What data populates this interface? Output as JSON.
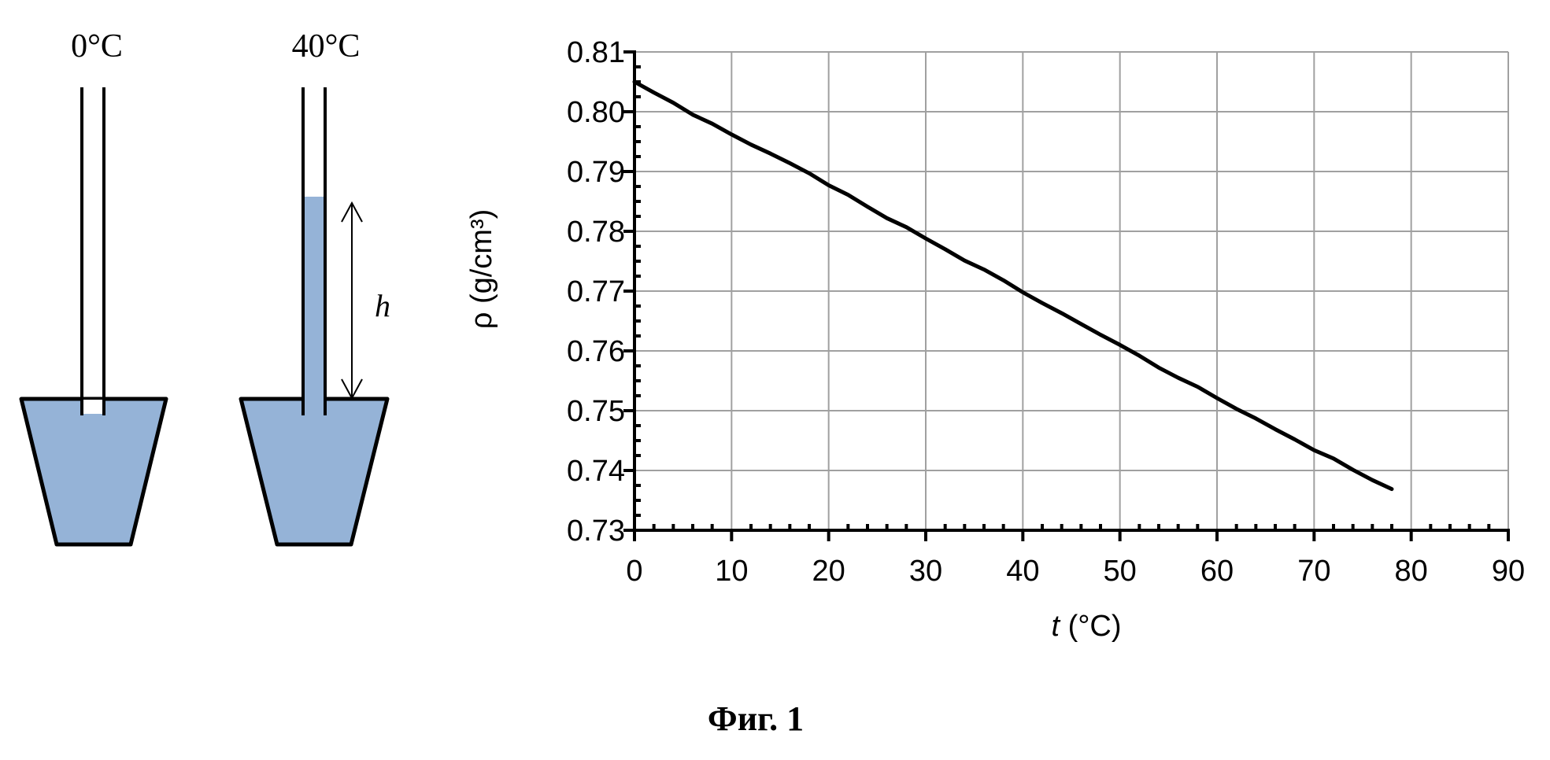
{
  "diagram": {
    "vessel_left_label": "0°C",
    "vessel_right_label": "40°C",
    "height_label": "h",
    "liquid_color": "#95b3d7"
  },
  "caption": "Фиг. 1",
  "chart_data": {
    "type": "line",
    "x": [
      0,
      2,
      4,
      6,
      8,
      10,
      12,
      14,
      16,
      18,
      20,
      22,
      24,
      26,
      28,
      30,
      32,
      34,
      36,
      38,
      40,
      42,
      44,
      46,
      48,
      50,
      52,
      54,
      56,
      58,
      60,
      62,
      64,
      66,
      68,
      70,
      72,
      74,
      76,
      78
    ],
    "values": [
      0.805,
      0.8032,
      0.8015,
      0.7995,
      0.798,
      0.7962,
      0.7945,
      0.793,
      0.7914,
      0.7897,
      0.7877,
      0.7861,
      0.7841,
      0.7822,
      0.7807,
      0.7788,
      0.777,
      0.7751,
      0.7736,
      0.7718,
      0.7698,
      0.768,
      0.7663,
      0.7645,
      0.7627,
      0.761,
      0.7592,
      0.7572,
      0.7555,
      0.754,
      0.7521,
      0.7503,
      0.7487,
      0.7469,
      0.7452,
      0.7434,
      0.742,
      0.7401,
      0.7384,
      0.7369
    ],
    "xlim": [
      0,
      90
    ],
    "ylim": [
      0.73,
      0.81
    ],
    "xticks": [
      "0",
      "10",
      "20",
      "30",
      "40",
      "50",
      "60",
      "70",
      "80",
      "90"
    ],
    "yticks": [
      "0.73",
      "0.74",
      "0.75",
      "0.76",
      "0.77",
      "0.78",
      "0.79",
      "0.80",
      "0.81"
    ],
    "xlabel_italic": "t",
    "xlabel_unit": " (°C)",
    "ylabel": "ρ (g/cm³)",
    "grid": true,
    "line_color": "#000000",
    "grid_color": "#a0a0a0"
  }
}
